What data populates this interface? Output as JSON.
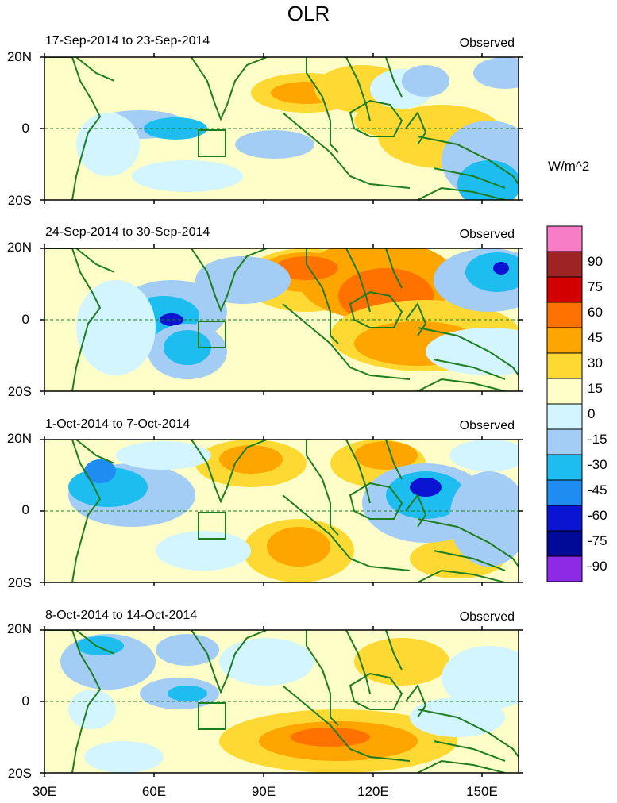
{
  "title": "OLR",
  "panels": [
    {
      "date_range": "17-Sep-2014 to 23-Sep-2014",
      "label": "Observed"
    },
    {
      "date_range": "24-Sep-2014 to 30-Sep-2014",
      "label": "Observed"
    },
    {
      "date_range": "1-Oct-2014 to 7-Oct-2014",
      "label": "Observed"
    },
    {
      "date_range": "8-Oct-2014 to 14-Oct-2014",
      "label": "Observed"
    }
  ],
  "y_ticks": [
    "20N",
    "0",
    "20S"
  ],
  "x_ticks": [
    "30E",
    "60E",
    "90E",
    "120E",
    "150E"
  ],
  "colorbar": {
    "units": "W/m^2",
    "labels": [
      "90",
      "75",
      "60",
      "45",
      "30",
      "15",
      "0",
      "-15",
      "-30",
      "-45",
      "-60",
      "-75",
      "-90"
    ],
    "colors": [
      "#f77dc6",
      "#9e2424",
      "#d20000",
      "#ff7200",
      "#ffa500",
      "#ffd933",
      "#fefec8",
      "#d2f5ff",
      "#a4cdf5",
      "#1ebdf0",
      "#1e8cf0",
      "#0a14d2",
      "#000a96",
      "#8c2ae6"
    ]
  },
  "map": {
    "coastline_color": "#1e7d1e",
    "lon_range": [
      30,
      160
    ],
    "lat_range": [
      -20,
      20
    ]
  }
}
